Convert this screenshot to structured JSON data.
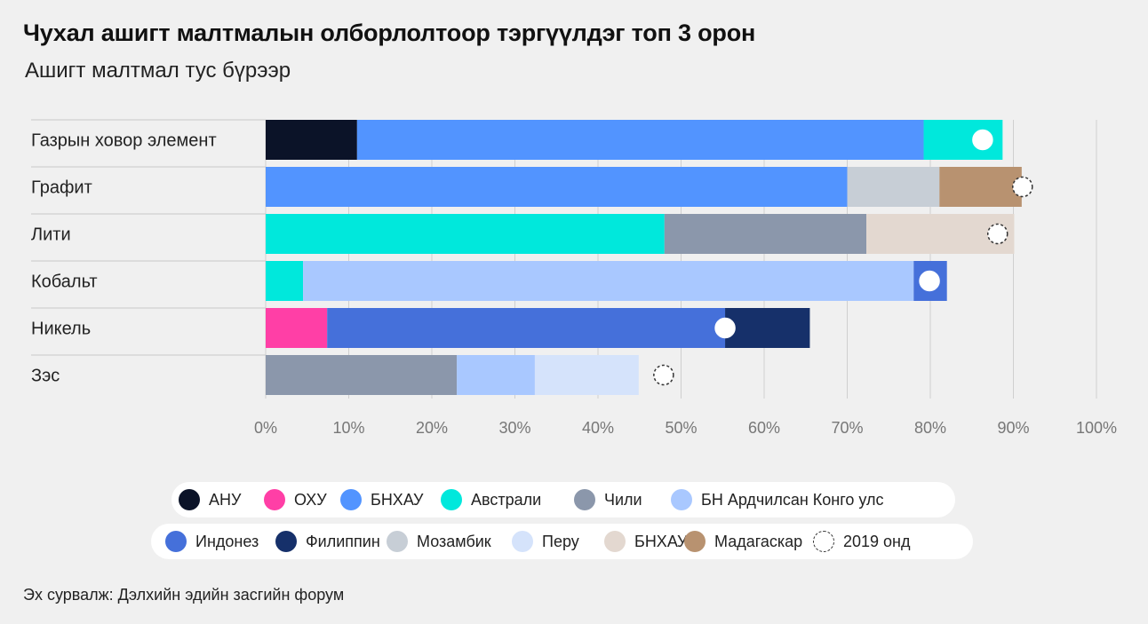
{
  "title": "Чухал ашигт малтмалын олборлолтоор тэргүүлдэг топ 3 орон",
  "subtitle": "Ашигт малтмал тус бүрээр",
  "source": "Эх сурвалж: Дэлхийн эдийн засгийн форум",
  "colors": {
    "usa": "#0b1328",
    "russia": "#ff3fa6",
    "china": "#5294ff",
    "australia": "#00e8dc",
    "chile": "#8b97ab",
    "drc": "#a9c8ff",
    "indonesia": "#4570da",
    "philippines": "#16306a",
    "mozambique": "#c7ced6",
    "peru": "#d5e3fb",
    "china_other": "#e3d8d0",
    "madagascar": "#b89270"
  },
  "legend": {
    "row1": [
      {
        "key": "usa",
        "label": "АНУ"
      },
      {
        "key": "russia",
        "label": "ОХУ"
      },
      {
        "key": "china",
        "label": "БНХАУ"
      },
      {
        "key": "australia",
        "label": "Австрали"
      },
      {
        "key": "chile",
        "label": "Чили"
      },
      {
        "key": "drc",
        "label": "БН Ардчилсан Конго улс"
      }
    ],
    "row2": [
      {
        "key": "indonesia",
        "label": "Индонез"
      },
      {
        "key": "philippines",
        "label": "Филиппин"
      },
      {
        "key": "mozambique",
        "label": "Мозамбик"
      },
      {
        "key": "peru",
        "label": "Перу"
      },
      {
        "key": "china_other",
        "label": "БНХАУ"
      },
      {
        "key": "madagascar",
        "label": "Мадагаскар"
      },
      {
        "key": "marker",
        "label": "2019 онд"
      }
    ]
  },
  "chart_data": {
    "type": "bar",
    "orientation": "horizontal",
    "stacked": true,
    "xlim": [
      0,
      100
    ],
    "x_ticks": [
      "0%",
      "10%",
      "20%",
      "30%",
      "40%",
      "50%",
      "60%",
      "70%",
      "80%",
      "90%",
      "100%"
    ],
    "grid": true,
    "marker_meaning": "2019 онд",
    "categories": [
      {
        "label": "Газрын ховор элемент",
        "segments": [
          {
            "key": "usa",
            "value": 11
          },
          {
            "key": "china",
            "value": 68.2
          },
          {
            "key": "australia",
            "value": 9.5
          }
        ],
        "marker": 86.3,
        "marker_style": "solid"
      },
      {
        "label": "Графит",
        "segments": [
          {
            "key": "china",
            "value": 70
          },
          {
            "key": "mozambique",
            "value": 11.1
          },
          {
            "key": "madagascar",
            "value": 9.9
          }
        ],
        "marker": 91.1,
        "marker_style": "dashed"
      },
      {
        "label": "Лити",
        "segments": [
          {
            "key": "australia",
            "value": 48
          },
          {
            "key": "chile",
            "value": 24.3
          },
          {
            "key": "china_other",
            "value": 17.8
          }
        ],
        "marker": 88.1,
        "marker_style": "dashed"
      },
      {
        "label": "Кобальт",
        "segments": [
          {
            "key": "australia",
            "value": 4.5
          },
          {
            "key": "drc",
            "value": 73.5
          },
          {
            "key": "indonesia",
            "value": 4
          }
        ],
        "marker": 79.9,
        "marker_style": "solid"
      },
      {
        "label": "Никель",
        "segments": [
          {
            "key": "russia",
            "value": 7.4
          },
          {
            "key": "indonesia",
            "value": 47.9
          },
          {
            "key": "philippines",
            "value": 10.2
          }
        ],
        "marker": 55.3,
        "marker_style": "solid"
      },
      {
        "label": "Зэс",
        "segments": [
          {
            "key": "chile",
            "value": 23
          },
          {
            "key": "drc",
            "value": 9.4
          },
          {
            "key": "peru",
            "value": 12.5
          }
        ],
        "marker": 47.9,
        "marker_style": "dashed"
      }
    ]
  }
}
